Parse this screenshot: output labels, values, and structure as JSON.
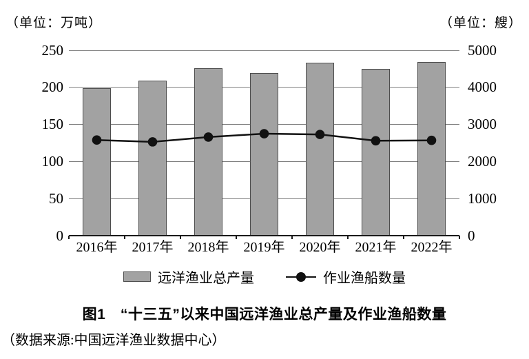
{
  "units": {
    "left_unit": "（单位：万吨）",
    "right_unit": "（单位：艘）"
  },
  "chart_data": {
    "type": "bar",
    "title": "图1　“十三五”以来中国远洋渔业总产量及作业渔船数量",
    "categories": [
      "2016年",
      "2017年",
      "2018年",
      "2019年",
      "2020年",
      "2021年",
      "2022年"
    ],
    "series": [
      {
        "name": "远洋渔业总产量",
        "type": "bar",
        "axis": "left",
        "values": [
          199,
          209,
          226,
          219,
          233,
          225,
          234
        ]
      },
      {
        "name": "作业渔船数量",
        "type": "line",
        "axis": "right",
        "values": [
          2580,
          2530,
          2660,
          2750,
          2730,
          2560,
          2570
        ]
      }
    ],
    "left_axis": {
      "label": "（单位：万吨）",
      "ticks": [
        0,
        50,
        100,
        150,
        200,
        250
      ],
      "min": 0,
      "max": 250
    },
    "right_axis": {
      "label": "（单位：艘）",
      "ticks": [
        0,
        1000,
        2000,
        3000,
        4000,
        5000
      ],
      "min": 0,
      "max": 5000
    },
    "grid": "horizontal",
    "legend_position": "bottom"
  },
  "legend": {
    "bar_label": "远洋渔业总产量",
    "line_label": "作业渔船数量"
  },
  "caption": "图1　“十三五”以来中国远洋渔业总产量及作业渔船数量",
  "source": "（数据来源:中国远洋渔业数据中心）",
  "colors": {
    "bar_fill": "#a2a2a2",
    "bar_border": "#4d4d4d",
    "grid_line": "#7d7d7d",
    "axis_line": "#1a1a1a",
    "line_series": "#111111",
    "text": "#000000"
  }
}
